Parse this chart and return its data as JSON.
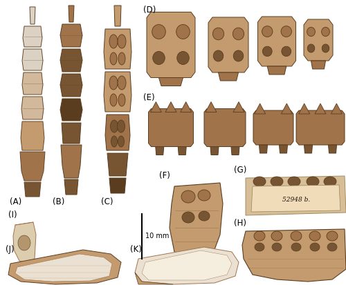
{
  "figure_width": 5.0,
  "figure_height": 4.13,
  "dpi": 100,
  "bg": [
    255,
    255,
    255
  ],
  "label_fontsize": 8.5,
  "label_color": "#000000",
  "scalebar_text": "10 mm",
  "scalebar_fontsize": 7,
  "colors": {
    "white_tooth": [
      220,
      210,
      195
    ],
    "cream_tooth": [
      210,
      185,
      155
    ],
    "brown_light": [
      195,
      155,
      110
    ],
    "brown_mid": [
      160,
      115,
      75
    ],
    "brown_dark": [
      120,
      85,
      50
    ],
    "brown_darker": [
      90,
      60,
      30
    ],
    "tan_fossil": [
      190,
      160,
      120
    ],
    "tan_light": [
      215,
      190,
      150
    ],
    "bg_white": [
      255,
      255,
      255
    ],
    "shadow": [
      100,
      70,
      40
    ],
    "enamel_white": [
      235,
      225,
      210
    ],
    "incisor_cream": [
      220,
      205,
      175
    ]
  }
}
